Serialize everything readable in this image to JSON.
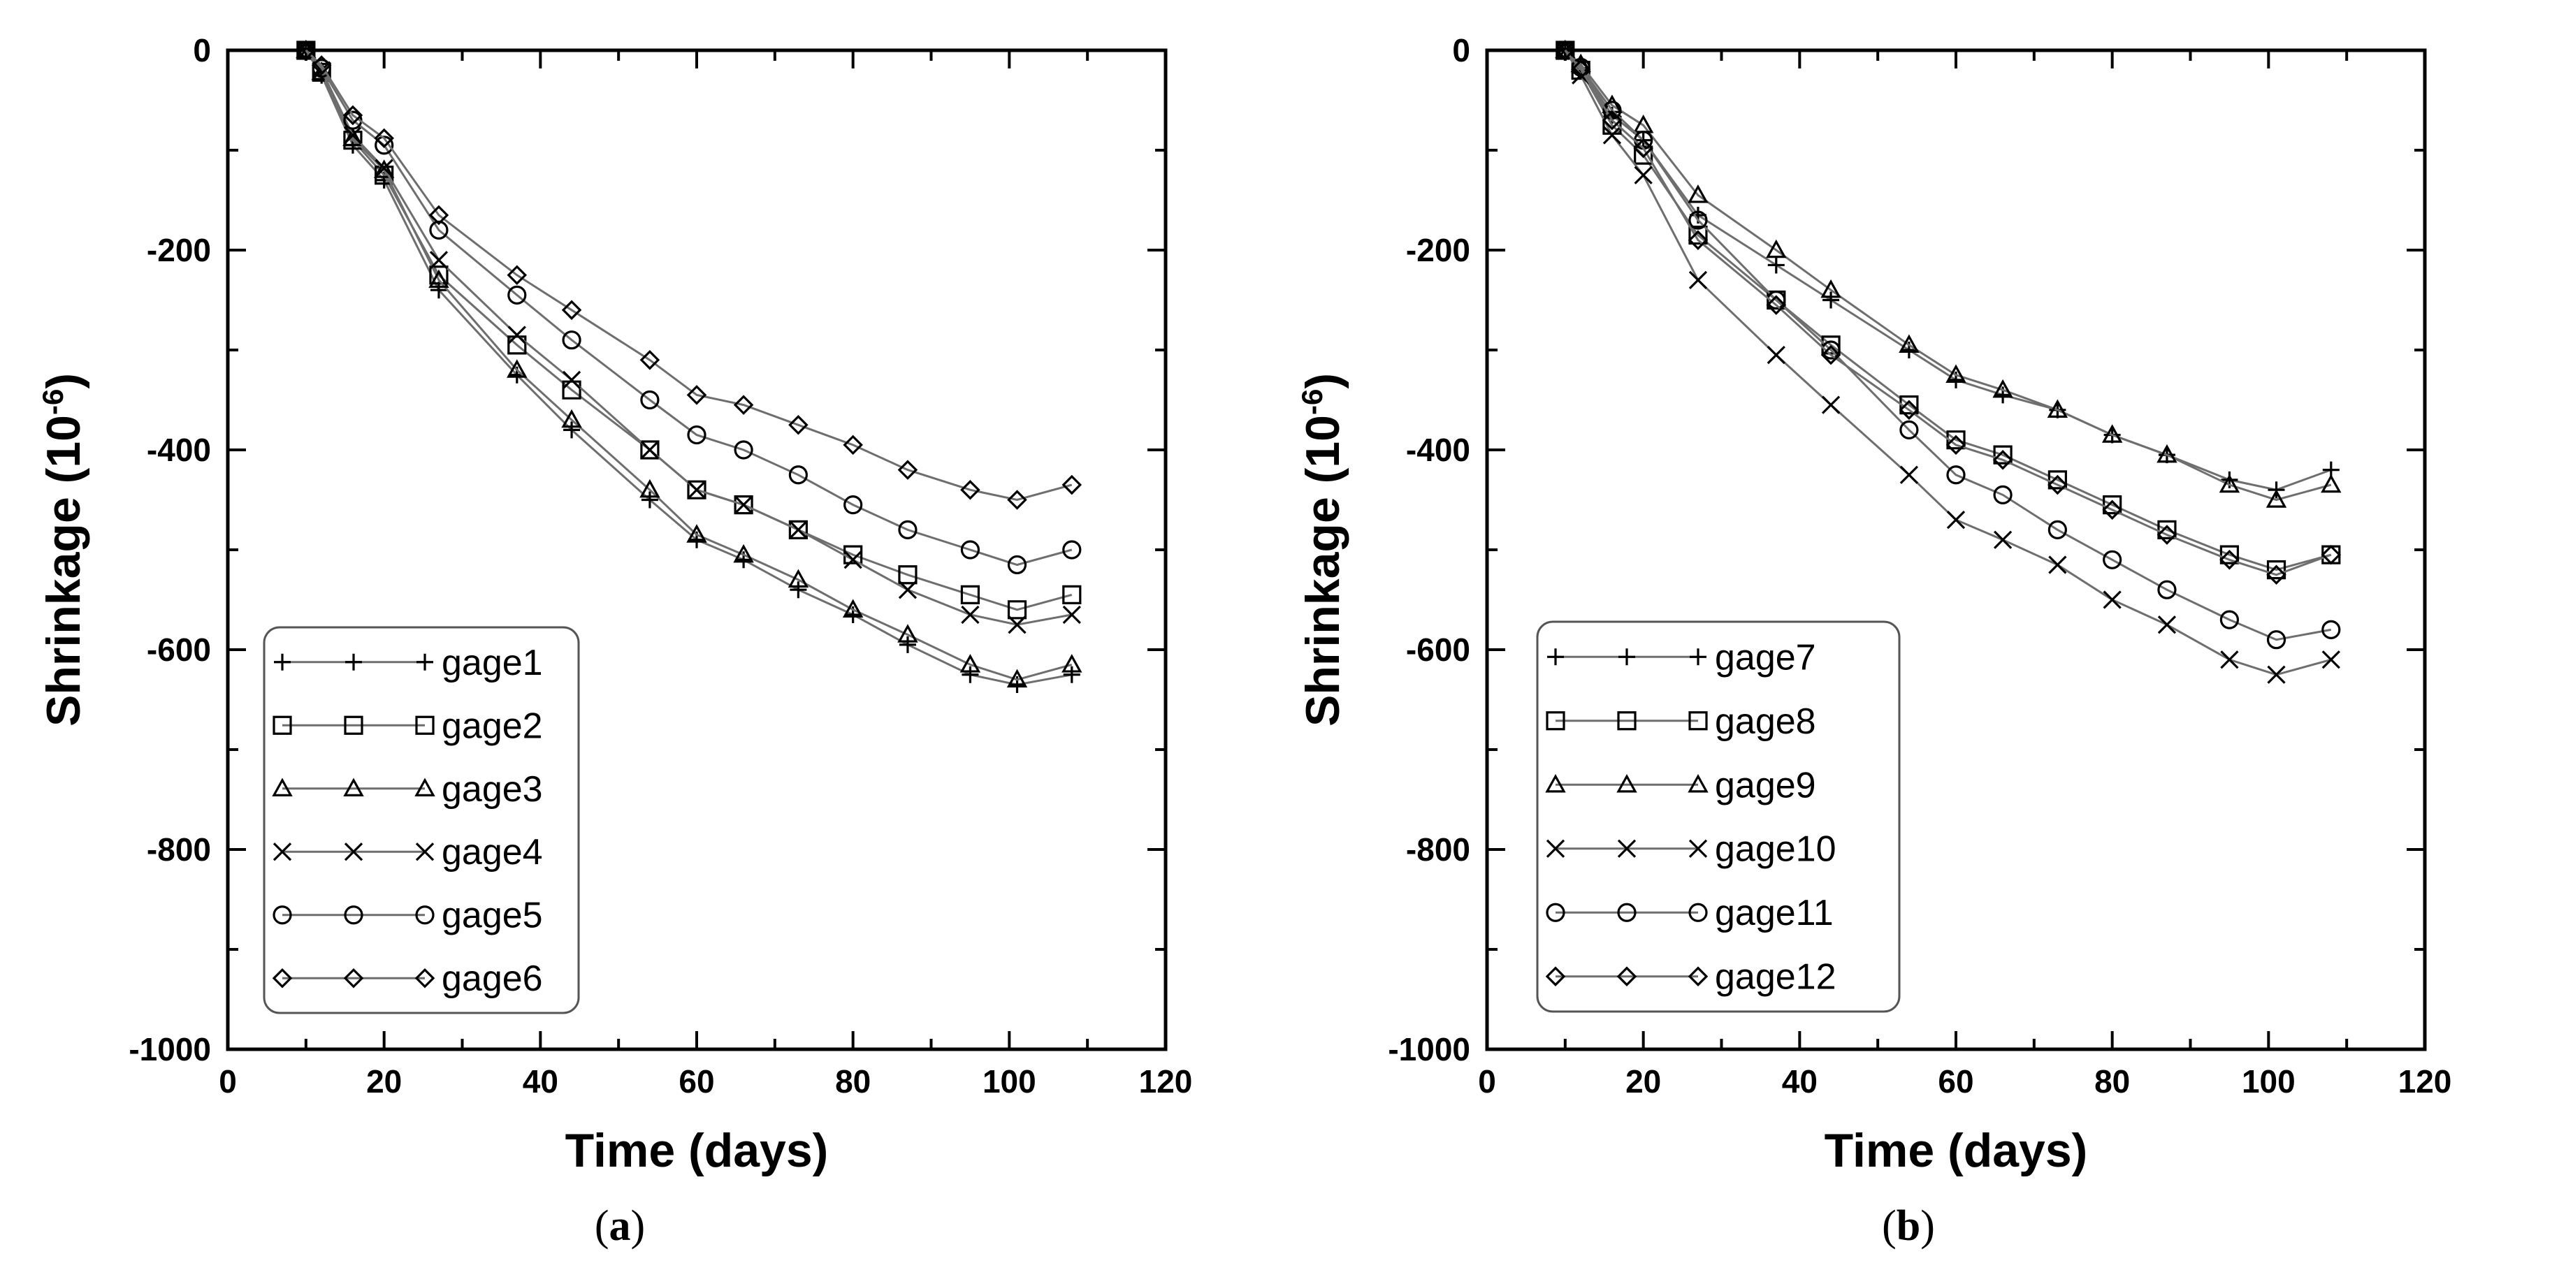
{
  "chart_data": [
    {
      "type": "line",
      "panel_label": "a",
      "caption_open": "(",
      "caption_close": ")",
      "xlabel": "Time (days)",
      "ylabel_main": "Shrinkage (10",
      "ylabel_exp": "-6",
      "ylabel_close": ")",
      "xlim": [
        0,
        120
      ],
      "ylim": [
        -1000,
        0
      ],
      "xticks": [
        0,
        20,
        40,
        60,
        80,
        100,
        120
      ],
      "yticks": [
        0,
        -200,
        -400,
        -600,
        -800,
        -1000
      ],
      "x": [
        10,
        12,
        16,
        20,
        27,
        37,
        44,
        54,
        60,
        66,
        73,
        80,
        87,
        95,
        101,
        108
      ],
      "series": [
        {
          "name": "gage1",
          "marker": "plus",
          "values": [
            0,
            -25,
            -95,
            -130,
            -240,
            -325,
            -380,
            -450,
            -490,
            -510,
            -540,
            -565,
            -595,
            -625,
            -635,
            -625
          ]
        },
        {
          "name": "gage2",
          "marker": "square",
          "values": [
            0,
            -22,
            -90,
            -125,
            -225,
            -295,
            -340,
            -400,
            -440,
            -455,
            -480,
            -505,
            -525,
            -545,
            -560,
            -545
          ]
        },
        {
          "name": "gage3",
          "marker": "triangle",
          "values": [
            0,
            -22,
            -88,
            -120,
            -230,
            -320,
            -370,
            -440,
            -485,
            -505,
            -530,
            -560,
            -585,
            -615,
            -630,
            -615
          ]
        },
        {
          "name": "gage4",
          "marker": "cross",
          "values": [
            0,
            -20,
            -85,
            -118,
            -210,
            -285,
            -330,
            -400,
            -440,
            -455,
            -480,
            -510,
            -540,
            -565,
            -575,
            -565
          ]
        },
        {
          "name": "gage5",
          "marker": "circle",
          "values": [
            0,
            -18,
            -70,
            -95,
            -180,
            -245,
            -290,
            -350,
            -385,
            -400,
            -425,
            -455,
            -480,
            -500,
            -515,
            -500
          ]
        },
        {
          "name": "gage6",
          "marker": "diamond",
          "values": [
            0,
            -15,
            -65,
            -88,
            -165,
            -225,
            -260,
            -310,
            -345,
            -355,
            -375,
            -395,
            -420,
            -440,
            -450,
            -435
          ]
        }
      ]
    },
    {
      "type": "line",
      "panel_label": "b",
      "caption_open": "(",
      "caption_close": ")",
      "xlabel": "Time (days)",
      "ylabel_main": "Shrinkage (10",
      "ylabel_exp": "-6",
      "ylabel_close": ")",
      "xlim": [
        0,
        120
      ],
      "ylim": [
        -1000,
        0
      ],
      "xticks": [
        0,
        20,
        40,
        60,
        80,
        100,
        120
      ],
      "yticks": [
        0,
        -200,
        -400,
        -600,
        -800,
        -1000
      ],
      "x": [
        10,
        12,
        16,
        20,
        27,
        37,
        44,
        54,
        60,
        66,
        73,
        80,
        87,
        95,
        101,
        108
      ],
      "series": [
        {
          "name": "gage7",
          "marker": "plus",
          "values": [
            0,
            -18,
            -65,
            -90,
            -165,
            -215,
            -250,
            -300,
            -330,
            -345,
            -360,
            -385,
            -405,
            -430,
            -440,
            -420
          ]
        },
        {
          "name": "gage8",
          "marker": "square",
          "values": [
            0,
            -20,
            -75,
            -105,
            -185,
            -250,
            -295,
            -355,
            -390,
            -405,
            -430,
            -455,
            -480,
            -505,
            -520,
            -505
          ]
        },
        {
          "name": "gage9",
          "marker": "triangle",
          "values": [
            0,
            -14,
            -55,
            -75,
            -145,
            -200,
            -240,
            -295,
            -325,
            -340,
            -360,
            -385,
            -405,
            -435,
            -450,
            -435
          ]
        },
        {
          "name": "gage10",
          "marker": "cross",
          "values": [
            0,
            -25,
            -85,
            -125,
            -230,
            -305,
            -355,
            -425,
            -470,
            -490,
            -515,
            -550,
            -575,
            -610,
            -625,
            -610
          ]
        },
        {
          "name": "gage11",
          "marker": "circle",
          "values": [
            0,
            -17,
            -60,
            -90,
            -170,
            -250,
            -300,
            -380,
            -425,
            -445,
            -480,
            -510,
            -540,
            -570,
            -590,
            -580
          ]
        },
        {
          "name": "gage12",
          "marker": "diamond",
          "values": [
            0,
            -19,
            -70,
            -98,
            -190,
            -255,
            -305,
            -360,
            -395,
            -410,
            -435,
            -460,
            -485,
            -510,
            -525,
            -505
          ]
        }
      ]
    }
  ]
}
